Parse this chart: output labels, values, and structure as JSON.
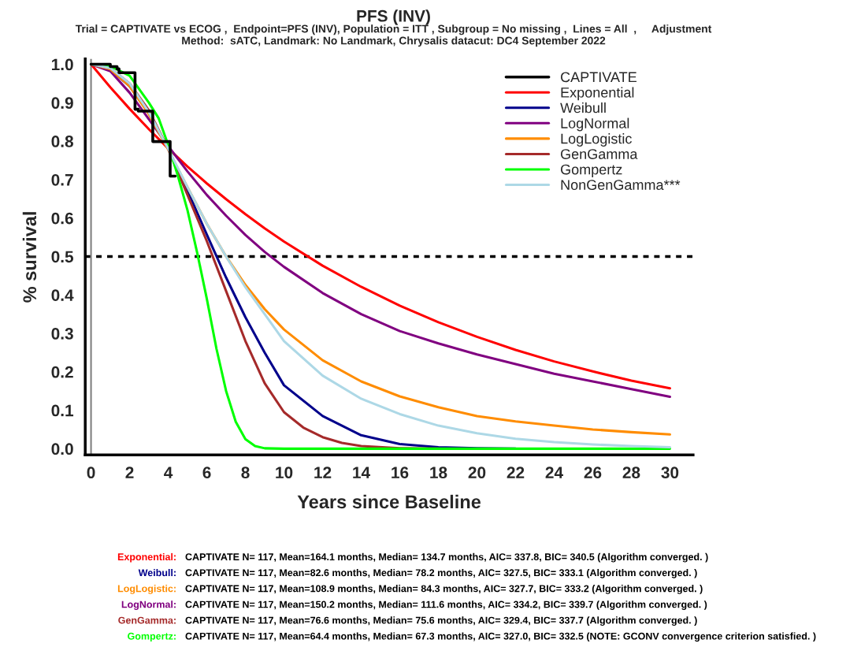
{
  "chart_data": {
    "type": "line",
    "title": "PFS (INV)",
    "subtitle": "Trial = CAPTIVATE vs ECOG ,  Endpoint=PFS (INV), Population = ITT , Subgroup = No missing ,  Lines = All  ,     Adjustment\nMethod:  sATC, Landmark: No Landmark, Chrysalis datacut: DC4 September 2022",
    "xlabel": "Years since Baseline",
    "ylabel": "% survival",
    "xlim": [
      -0.3,
      31.2
    ],
    "ylim": [
      -0.016,
      1.014
    ],
    "xticks": [
      0,
      2,
      4,
      6,
      8,
      10,
      12,
      14,
      16,
      18,
      20,
      22,
      24,
      26,
      28,
      30
    ],
    "yticks": [
      {
        "value": 0,
        "label": "0.0"
      },
      0.1,
      0.2,
      0.3,
      0.4,
      0.5,
      0.6,
      0.7,
      0.8,
      0.9,
      {
        "value": 1,
        "label": "1.0"
      }
    ],
    "grid": false,
    "legend": "top right",
    "series": [
      {
        "name": "CAPTIVATE",
        "color": "#000000",
        "type": "step",
        "x": [
          0,
          1.0,
          1.35,
          1.45,
          2.28,
          2.45,
          3.2,
          4.1,
          4.36
        ],
        "values": [
          1.0,
          0.994,
          0.988,
          0.978,
          0.883,
          0.878,
          0.799,
          0.709,
          0.709
        ]
      },
      {
        "name": "Exponential",
        "color": "#ff0000",
        "x": [
          0,
          1,
          2,
          3,
          4,
          5,
          6,
          7,
          8,
          9,
          10,
          12,
          14,
          16,
          18,
          20,
          22,
          24,
          26,
          28,
          30
        ],
        "values": [
          1.0,
          0.94,
          0.884,
          0.831,
          0.781,
          0.734,
          0.69,
          0.649,
          0.61,
          0.573,
          0.539,
          0.476,
          0.421,
          0.372,
          0.329,
          0.291,
          0.257,
          0.227,
          0.201,
          0.177,
          0.157
        ]
      },
      {
        "name": "Weibull",
        "color": "#00008b",
        "x": [
          0,
          1,
          2,
          3,
          4,
          5,
          6,
          7,
          8,
          9,
          10,
          12,
          14,
          16,
          18,
          20,
          22
        ],
        "values": [
          1.0,
          0.986,
          0.943,
          0.872,
          0.78,
          0.671,
          0.557,
          0.445,
          0.342,
          0.25,
          0.165,
          0.085,
          0.035,
          0.012,
          0.004,
          0.001,
          0
        ]
      },
      {
        "name": "LogNormal",
        "color": "#800080",
        "x": [
          0,
          1,
          2,
          3,
          4,
          5,
          6,
          7,
          8,
          9,
          10,
          12,
          14,
          16,
          18,
          20,
          22,
          24,
          26,
          28,
          30
        ],
        "values": [
          1.0,
          0.982,
          0.926,
          0.857,
          0.787,
          0.721,
          0.66,
          0.606,
          0.556,
          0.512,
          0.473,
          0.405,
          0.35,
          0.306,
          0.274,
          0.245,
          0.22,
          0.195,
          0.175,
          0.155,
          0.135
        ]
      },
      {
        "name": "LogLogistic",
        "color": "#ff8c00",
        "x": [
          0,
          1,
          2,
          3,
          4,
          5,
          6,
          7,
          8,
          9,
          10,
          12,
          14,
          16,
          18,
          20,
          22,
          24,
          26,
          28,
          30
        ],
        "values": [
          1.0,
          0.987,
          0.943,
          0.87,
          0.778,
          0.68,
          0.585,
          0.5,
          0.426,
          0.363,
          0.31,
          0.23,
          0.175,
          0.136,
          0.108,
          0.085,
          0.071,
          0.06,
          0.05,
          0.043,
          0.037
        ]
      },
      {
        "name": "GenGamma",
        "color": "#a52a2a",
        "x": [
          0,
          1,
          2,
          3,
          4,
          5,
          6,
          7,
          8,
          9,
          10,
          11,
          12,
          13,
          14,
          16,
          18
        ],
        "values": [
          1.0,
          0.99,
          0.95,
          0.88,
          0.78,
          0.66,
          0.54,
          0.41,
          0.28,
          0.17,
          0.095,
          0.055,
          0.03,
          0.015,
          0.007,
          0.001,
          0
        ]
      },
      {
        "name": "Gompertz",
        "color": "#00ff00",
        "x": [
          0,
          1,
          2,
          3,
          3.5,
          4,
          4.5,
          5,
          5.5,
          6,
          6.5,
          7,
          7.5,
          8,
          8.5,
          9,
          10,
          30
        ],
        "values": [
          1.0,
          0.995,
          0.97,
          0.9,
          0.86,
          0.79,
          0.71,
          0.62,
          0.51,
          0.39,
          0.26,
          0.15,
          0.07,
          0.025,
          0.007,
          0.001,
          0,
          0
        ]
      },
      {
        "name": "NonGenGamma***",
        "color": "#add8e6",
        "x": [
          0,
          1,
          2,
          3,
          4,
          5,
          6,
          7,
          8,
          9,
          10,
          12,
          14,
          16,
          18,
          20,
          22,
          24,
          26,
          28,
          30
        ],
        "values": [
          1.0,
          0.99,
          0.95,
          0.875,
          0.78,
          0.68,
          0.585,
          0.5,
          0.42,
          0.35,
          0.28,
          0.19,
          0.13,
          0.09,
          0.06,
          0.04,
          0.026,
          0.017,
          0.011,
          0.007,
          0.004
        ]
      }
    ],
    "ref_lines": [
      {
        "axis": "y",
        "value": 0.5,
        "color": "#000000",
        "line_style": "dotted"
      },
      {
        "axis": "x",
        "value": 0,
        "color": "#808080",
        "line_style": "solid"
      }
    ],
    "annotations": [
      "Exponential:",
      "CAPTIVATE N= 117, Mean=164.1 months, Median= 134.7 months, AIC= 337.8, BIC= 340.5 (Algorithm converged. )",
      "Weibull:",
      "CAPTIVATE N= 117, Mean=82.6 months, Median= 78.2 months, AIC= 327.5, BIC= 333.1 (Algorithm converged. )",
      "LogLogistic:",
      "CAPTIVATE N= 117, Mean=108.9 months, Median= 84.3 months, AIC= 327.7, BIC= 333.2 (Algorithm converged. )",
      "LogNormal:",
      "CAPTIVATE N= 117, Mean=150.2 months, Median= 111.6 months, AIC= 334.2, BIC= 339.7 (Algorithm converged. )",
      "GenGamma:",
      "CAPTIVATE N= 117, Mean=76.6 months, Median= 75.6 months, AIC= 329.4, BIC= 337.7 (Algorithm converged. )",
      "Gompertz:",
      "CAPTIVATE N= 117, Mean=64.4 months, Median= 67.3 months, AIC= 327.0, BIC= 332.5 (NOTE: GCONV convergence criterion satisfied. )"
    ]
  }
}
